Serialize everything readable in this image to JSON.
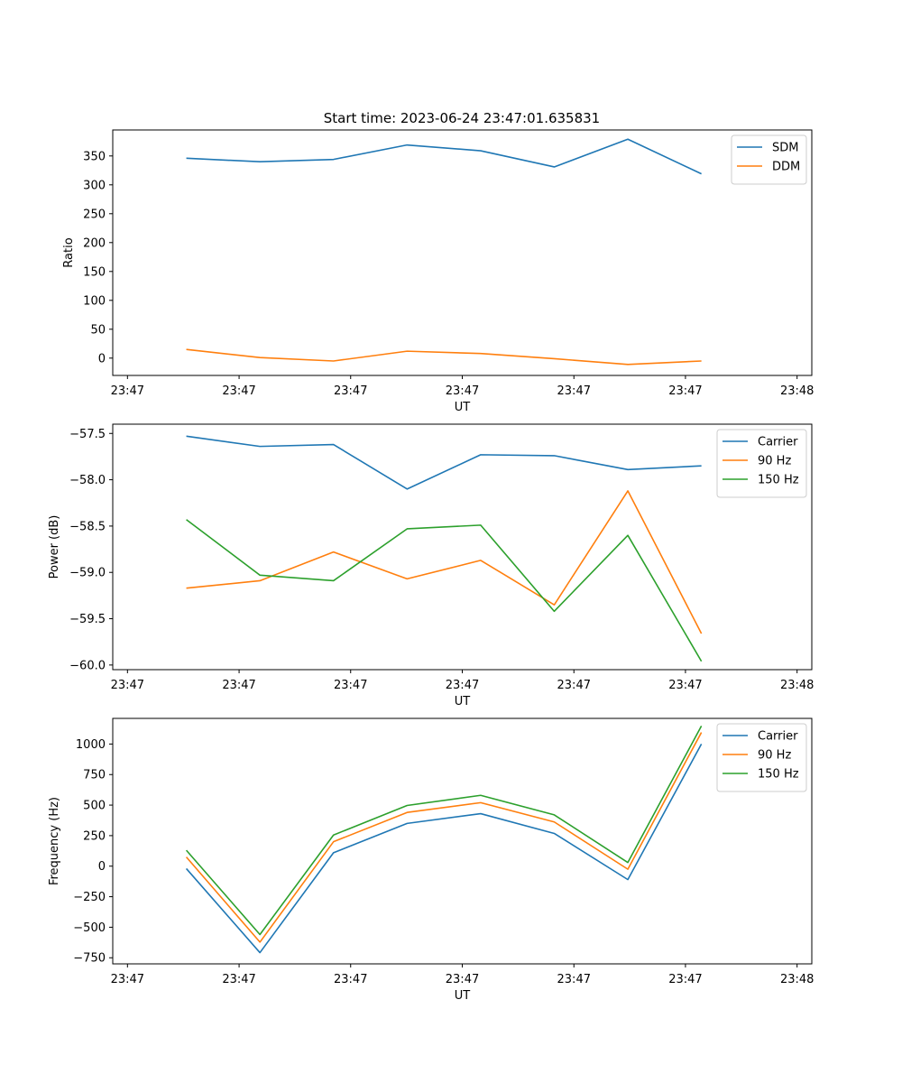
{
  "figure": {
    "title": "Start time: 2023-06-24 23:47:01.635831"
  },
  "chart_data": [
    {
      "type": "line",
      "title": "",
      "xlabel": "UT",
      "ylabel": "Ratio",
      "x_tick_labels": [
        "23:47",
        "23:47",
        "23:47",
        "23:47",
        "23:47",
        "23:47",
        "23:48"
      ],
      "y_ticks": [
        0,
        50,
        100,
        150,
        200,
        250,
        300,
        350
      ],
      "ylim": [
        -30,
        395
      ],
      "x_samples": 8,
      "x_tick_positions": [
        0.2,
        1.717,
        3.233,
        4.75,
        6.267,
        7.783,
        9.3
      ],
      "xlim": [
        0,
        9.5
      ],
      "legend": "top-right",
      "grid": false,
      "series": [
        {
          "name": "SDM",
          "color": "#1f77b4",
          "values": [
            346,
            340,
            344,
            369,
            359,
            331,
            379,
            319
          ]
        },
        {
          "name": "DDM",
          "color": "#ff7f0e",
          "values": [
            15,
            1,
            -5,
            12,
            8,
            -1,
            -11,
            -5
          ]
        }
      ]
    },
    {
      "type": "line",
      "title": "",
      "xlabel": "UT",
      "ylabel": "Power (dB)",
      "x_tick_labels": [
        "23:47",
        "23:47",
        "23:47",
        "23:47",
        "23:47",
        "23:47",
        "23:48"
      ],
      "y_ticks": [
        -60.0,
        -59.5,
        -59.0,
        -58.5,
        -58.0,
        -57.5
      ],
      "y_tick_labels": [
        "−60.0",
        "−59.5",
        "−59.0",
        "−58.5",
        "−58.0",
        "−57.5"
      ],
      "ylim": [
        -60.05,
        -57.4
      ],
      "x_samples": 8,
      "x_tick_positions": [
        0.2,
        1.717,
        3.233,
        4.75,
        6.267,
        7.783,
        9.3
      ],
      "xlim": [
        0,
        9.5
      ],
      "legend": "top-right",
      "grid": false,
      "series": [
        {
          "name": "Carrier",
          "color": "#1f77b4",
          "values": [
            -57.53,
            -57.64,
            -57.62,
            -58.1,
            -57.73,
            -57.74,
            -57.89,
            -57.85
          ]
        },
        {
          "name": "90 Hz",
          "color": "#ff7f0e",
          "values": [
            -59.17,
            -59.09,
            -58.78,
            -59.07,
            -58.87,
            -59.35,
            -58.12,
            -59.66
          ]
        },
        {
          "name": "150 Hz",
          "color": "#2ca02c",
          "values": [
            -58.43,
            -59.03,
            -59.09,
            -58.53,
            -58.49,
            -59.42,
            -58.6,
            -59.96
          ]
        }
      ]
    },
    {
      "type": "line",
      "title": "",
      "xlabel": "UT",
      "ylabel": "Frequency (Hz)",
      "x_tick_labels": [
        "23:47",
        "23:47",
        "23:47",
        "23:47",
        "23:47",
        "23:47",
        "23:48"
      ],
      "y_ticks": [
        -750,
        -500,
        -250,
        0,
        250,
        500,
        750,
        1000
      ],
      "y_tick_labels": [
        "−750",
        "−500",
        "−250",
        "0",
        "250",
        "500",
        "750",
        "1000"
      ],
      "ylim": [
        -800,
        1210
      ],
      "x_samples": 8,
      "x_tick_positions": [
        0.2,
        1.717,
        3.233,
        4.75,
        6.267,
        7.783,
        9.3
      ],
      "xlim": [
        0,
        9.5
      ],
      "legend": "top-right",
      "grid": false,
      "series": [
        {
          "name": "Carrier",
          "color": "#1f77b4",
          "values": [
            -20,
            -708,
            110,
            350,
            430,
            268,
            -110,
            1000
          ]
        },
        {
          "name": "90 Hz",
          "color": "#ff7f0e",
          "values": [
            75,
            -622,
            200,
            440,
            520,
            362,
            -25,
            1095
          ]
        },
        {
          "name": "150 Hz",
          "color": "#2ca02c",
          "values": [
            130,
            -560,
            255,
            497,
            580,
            420,
            30,
            1148
          ]
        }
      ]
    }
  ]
}
